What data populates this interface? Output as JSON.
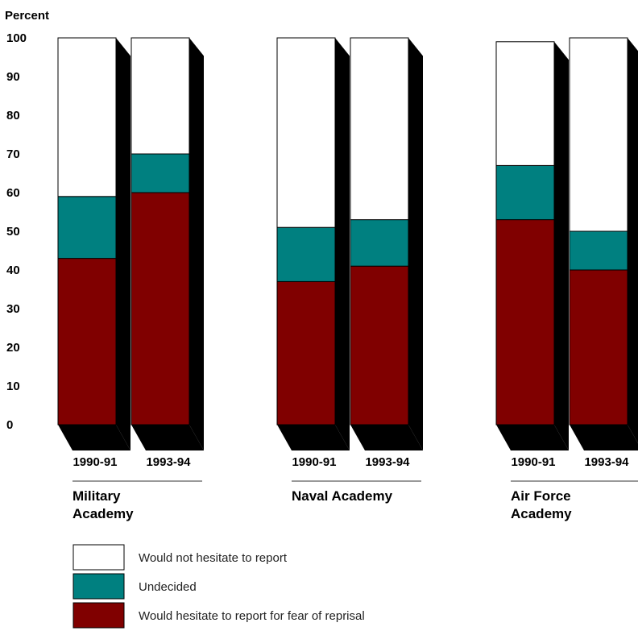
{
  "chart_data": {
    "type": "bar",
    "stacked": true,
    "ylabel": "Percent",
    "ylim": [
      0,
      100
    ],
    "yticks": [
      0,
      10,
      20,
      30,
      40,
      50,
      60,
      70,
      80,
      90,
      100
    ],
    "groups": [
      {
        "name": "Military Academy",
        "name_lines": [
          "Military",
          "Academy"
        ],
        "bars": [
          {
            "period": "1990-91",
            "hesitate": 43,
            "undecided": 16,
            "not_hesitate": 41
          },
          {
            "period": "1993-94",
            "hesitate": 60,
            "undecided": 10,
            "not_hesitate": 30
          }
        ]
      },
      {
        "name": "Naval Academy",
        "name_lines": [
          "Naval Academy"
        ],
        "bars": [
          {
            "period": "1990-91",
            "hesitate": 37,
            "undecided": 14,
            "not_hesitate": 49
          },
          {
            "period": "1993-94",
            "hesitate": 41,
            "undecided": 12,
            "not_hesitate": 47
          }
        ]
      },
      {
        "name": "Air Force Academy",
        "name_lines": [
          "Air Force",
          "Academy"
        ],
        "bars": [
          {
            "period": "1990-91",
            "hesitate": 53,
            "undecided": 14,
            "not_hesitate": 32
          },
          {
            "period": "1993-94",
            "hesitate": 40,
            "undecided": 10,
            "not_hesitate": 50
          }
        ]
      }
    ],
    "legend": [
      {
        "key": "not_hesitate",
        "label": "Would not hesitate to report",
        "color": "#ffffff"
      },
      {
        "key": "undecided",
        "label": "Undecided",
        "color": "#008080"
      },
      {
        "key": "hesitate",
        "label": "Would hesitate to report for fear of reprisal",
        "color": "#800000"
      }
    ]
  }
}
